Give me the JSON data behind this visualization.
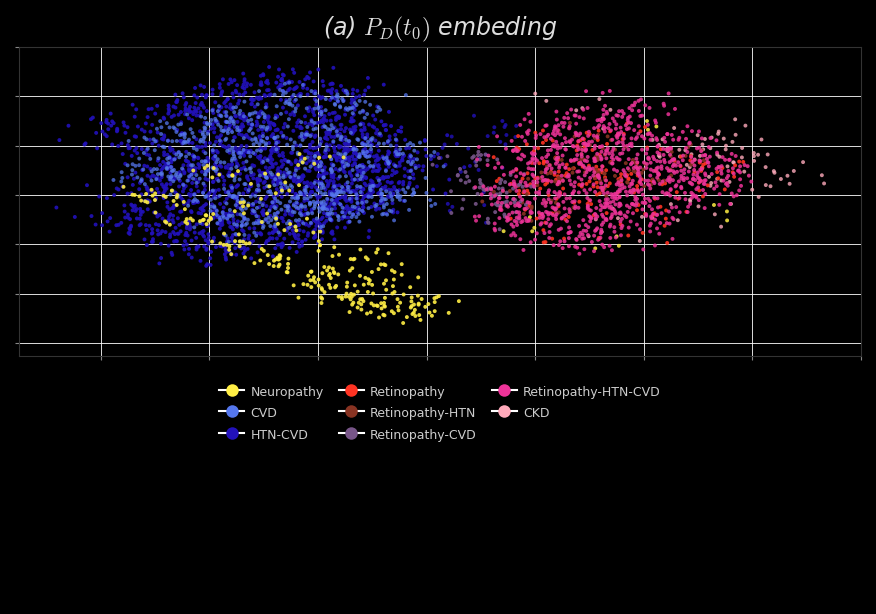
{
  "title": "(a) $P_D(t_0)$ embeding",
  "title_fontsize": 17,
  "background_color": "#000000",
  "plot_bg_color": "#000000",
  "grid_color": "#ffffff",
  "categories": [
    {
      "name": "Neuropathy",
      "color": "#FFEE44",
      "alpha": 0.9,
      "zorder": 4
    },
    {
      "name": "CVD",
      "color": "#5577EE",
      "alpha": 0.75,
      "zorder": 3
    },
    {
      "name": "HTN-CVD",
      "color": "#2211BB",
      "alpha": 0.9,
      "zorder": 3
    },
    {
      "name": "Retinopathy",
      "color": "#FF3322",
      "alpha": 0.9,
      "zorder": 4
    },
    {
      "name": "Retinopathy-HTN",
      "color": "#883322",
      "alpha": 0.9,
      "zorder": 4
    },
    {
      "name": "Retinopathy-CVD",
      "color": "#775588",
      "alpha": 0.9,
      "zorder": 4
    },
    {
      "name": "Retinopathy-HTN-CVD",
      "color": "#EE3399",
      "alpha": 0.85,
      "zorder": 5
    },
    {
      "name": "CKD",
      "color": "#FFAABB",
      "alpha": 0.8,
      "zorder": 3
    }
  ],
  "seed": 123,
  "point_size": 8,
  "legend_fontsize": 9,
  "text_color": "#cccccc",
  "title_color": "#dddddd"
}
